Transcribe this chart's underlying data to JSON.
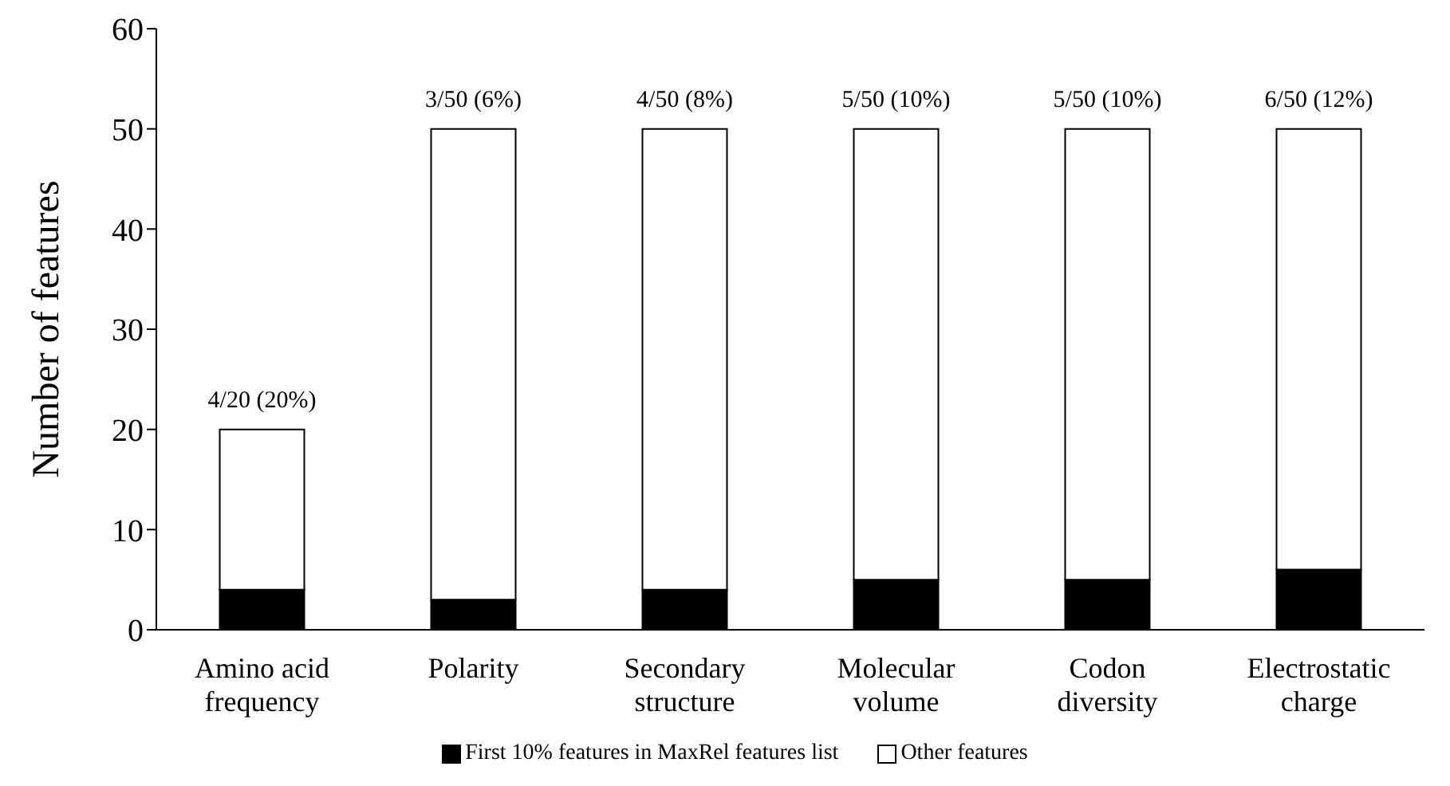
{
  "chart_data": {
    "type": "bar",
    "stacked": true,
    "ylabel": "Number of features",
    "categories": [
      "Amino acid frequency",
      "Polarity",
      "Secondary structure",
      "Molecular volume",
      "Codon diversity",
      "Electrostatic charge"
    ],
    "series": [
      {
        "name": "First 10% features in MaxRel features list",
        "color": "#000000",
        "values": [
          4,
          3,
          4,
          5,
          5,
          6
        ]
      },
      {
        "name": "Other features",
        "color": "#ffffff",
        "values": [
          16,
          47,
          46,
          45,
          45,
          44
        ]
      }
    ],
    "totals": [
      "4/20 (20%)",
      "3/50 (6%)",
      "4/50 (8%)",
      "5/50 (10%)",
      "5/50 (10%)",
      "6/50 (12%)"
    ],
    "ylim": [
      0,
      60
    ],
    "yticks": [
      0,
      10,
      20,
      30,
      40,
      50,
      60
    ],
    "grid": false,
    "legend": "bottom"
  }
}
